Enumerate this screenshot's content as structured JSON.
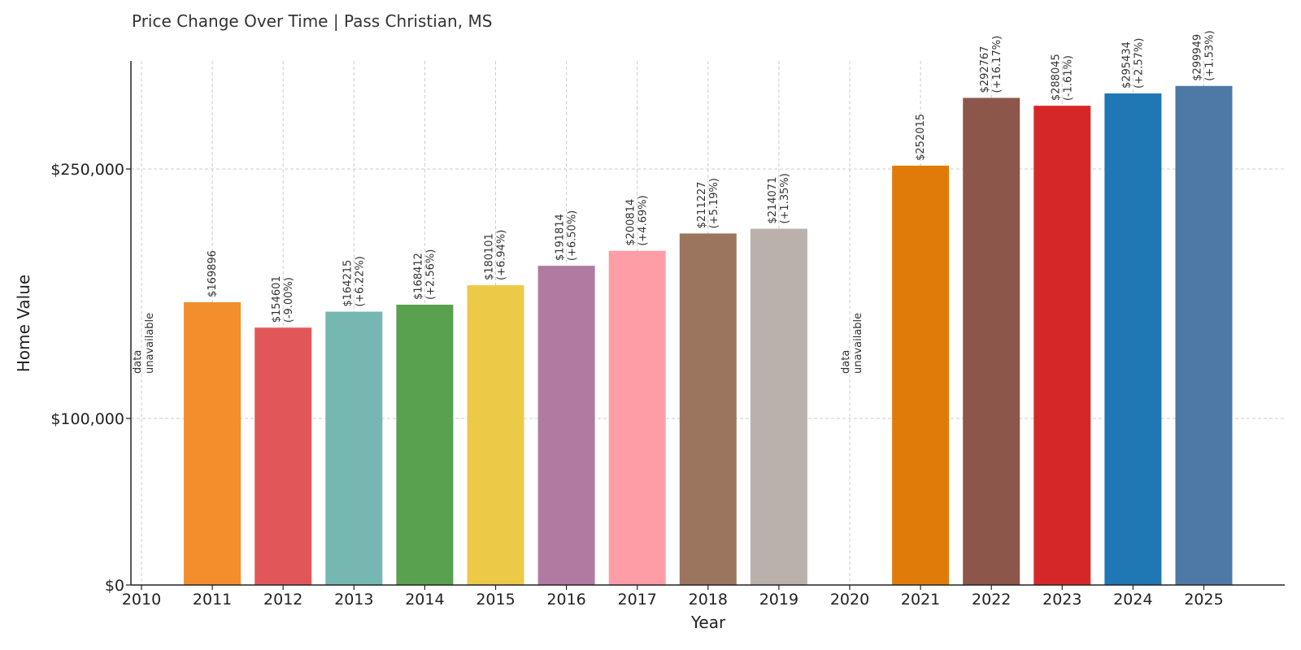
{
  "chart_data": {
    "type": "bar",
    "title": "Price Change Over Time | Pass Christian, MS",
    "xlabel": "Year",
    "ylabel": "Home Value",
    "categories": [
      "2010",
      "2011",
      "2012",
      "2013",
      "2014",
      "2015",
      "2016",
      "2017",
      "2018",
      "2019",
      "2020",
      "2021",
      "2022",
      "2023",
      "2024",
      "2025"
    ],
    "values": [
      null,
      169896,
      154601,
      164215,
      168412,
      180101,
      191814,
      200814,
      211227,
      214071,
      null,
      252015,
      292767,
      288045,
      295434,
      299949
    ],
    "value_labels": [
      "",
      "$169896",
      "$154601",
      "$164215",
      "$168412",
      "$180101",
      "$191814",
      "$200814",
      "$211227",
      "$214071",
      "",
      "$252015",
      "$292767",
      "$288045",
      "$295434",
      "$299949"
    ],
    "change_labels": [
      "",
      "",
      "(-9.00%)",
      "(+6.22%)",
      "(+2.56%)",
      "(+6.94%)",
      "(+6.50%)",
      "(+4.69%)",
      "(+5.19%)",
      "(+1.35%)",
      "",
      "",
      "(+16.17%)",
      "(-1.61%)",
      "(+2.57%)",
      "(+1.53%)"
    ],
    "missing_label": [
      "data",
      "unavailable"
    ],
    "colors": [
      "",
      "#f28e2b",
      "#e15759",
      "#76b7b2",
      "#59a14f",
      "#edc948",
      "#b07aa1",
      "#ff9da7",
      "#9c755f",
      "#bab0ac",
      "",
      "#e07b0a",
      "#8c564b",
      "#d62728",
      "#1f77b4",
      "#4e79a7"
    ],
    "yticks": [
      0,
      100000,
      250000
    ],
    "ytick_labels": [
      "$0",
      "$100,000",
      "$250,000"
    ],
    "ylim": [
      0,
      315000
    ],
    "grid": true,
    "scale_note": "y axis is non-linear: $0→$100,000 spans 200 units per $100k, above $100,000 is linear at 300 units per $150k"
  }
}
